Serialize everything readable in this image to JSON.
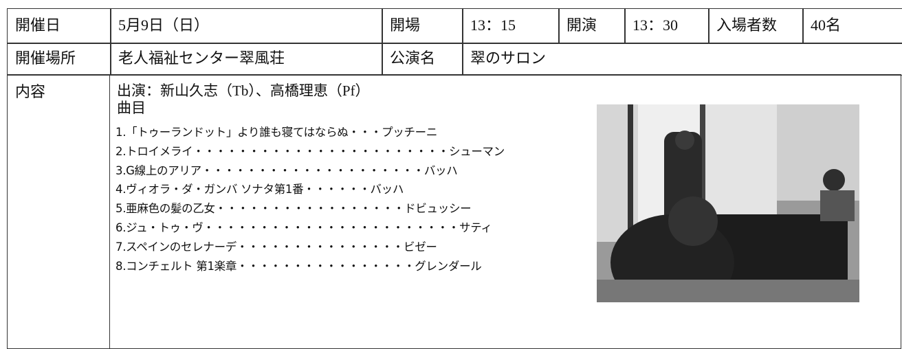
{
  "table": {
    "rows": [
      [
        "開催日",
        "5月9日（日）",
        "開場",
        "13：15",
        "開演",
        "13：30",
        "入場者数",
        "40名"
      ],
      [
        "開催場所",
        "老人福祉センター翠風荘",
        "公演名",
        "翠のサロン"
      ]
    ]
  },
  "content": {
    "label": "内容",
    "performers": "出演：新山久志（Tb）、高橋理恵（Pf）",
    "program_heading": "曲目",
    "program": [
      "1.「トゥーランドット」より誰も寝てはならぬ・・・プッチーニ",
      "2.トロイメライ・・・・・・・・・・・・・・・・・・・・・・・シューマン",
      "3.G線上のアリア・・・・・・・・・・・・・・・・・・・・バッハ",
      "4.ヴィオラ・ダ・ガンバ ソナタ第1番・・・・・・バッハ",
      "5.亜麻色の髪の乙女・・・・・・・・・・・・・・・・・ドビュッシー",
      "6.ジュ・トゥ・ヴ・・・・・・・・・・・・・・・・・・・・・・・サティ",
      "7.スペインのセレナーデ・・・・・・・・・・・・・・・ビゼー",
      "8.コンチェルト 第1楽章・・・・・・・・・・・・・・・・グレンダール"
    ]
  }
}
